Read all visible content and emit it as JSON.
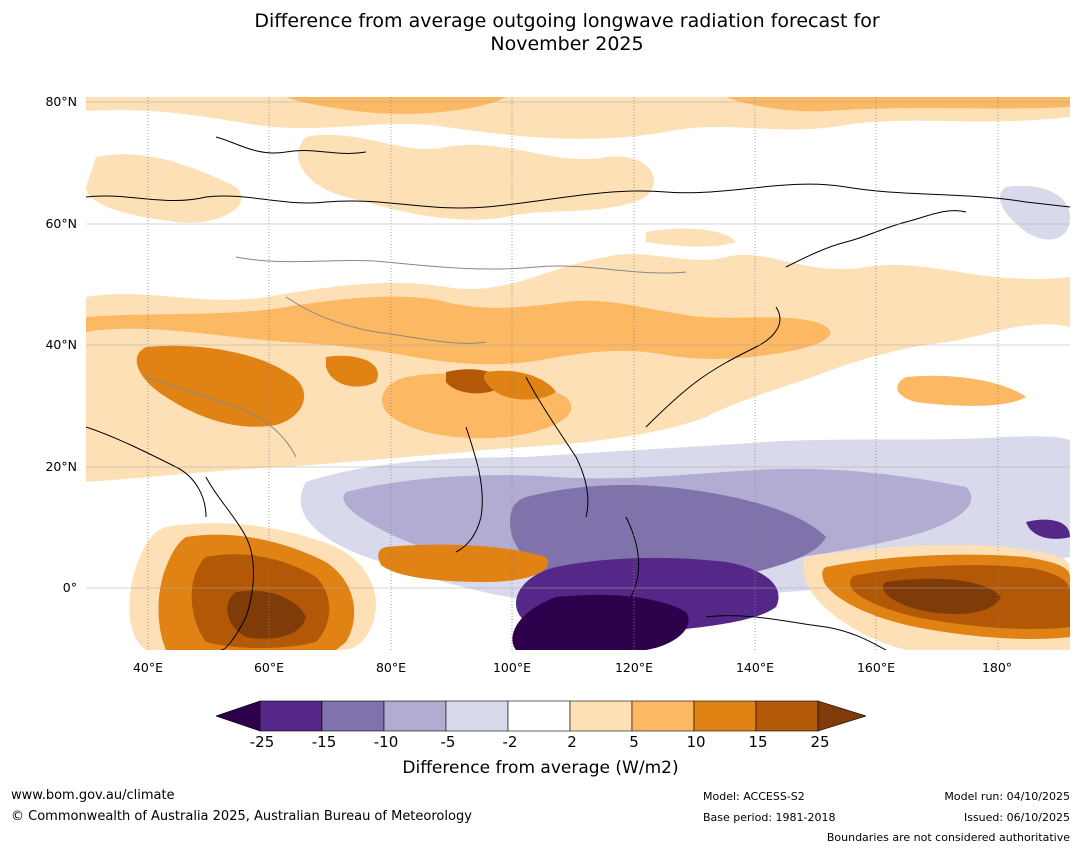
{
  "title_line1": "Difference from average outgoing longwave radiation forecast for",
  "title_line2": "November 2025",
  "lat_labels": [
    "80°N",
    "60°N",
    "40°N",
    "20°N",
    "0°"
  ],
  "lon_labels": [
    "40°E",
    "60°E",
    "80°E",
    "100°E",
    "120°E",
    "140°E",
    "160°E",
    "180°"
  ],
  "colorbar": {
    "ticks": [
      "-25",
      "-15",
      "-10",
      "-5",
      "-2",
      "2",
      "5",
      "10",
      "15",
      "25"
    ],
    "colors": {
      "below_min": "#2d004b",
      "c1": "#542788",
      "c2": "#8073ac",
      "c3": "#b2abd2",
      "c4": "#d8daeb",
      "c5": "#ffffff",
      "c6": "#fee0b6",
      "c7": "#fdb863",
      "c8": "#e08214",
      "c9": "#b35806",
      "above_max": "#7f3b08"
    },
    "label": "Difference from average (W/m2)"
  },
  "footer": {
    "url": "www.bom.gov.au/climate",
    "copyright": "© Commonwealth of Australia 2025, Australian Bureau of Meteorology",
    "model": "Model: ACCESS-S2",
    "base_period": "Base period: 1981-2018",
    "model_run": "Model run: 04/10/2025",
    "issued": "Issued: 06/10/2025",
    "disclaimer": "Boundaries are not considered authoritative"
  }
}
